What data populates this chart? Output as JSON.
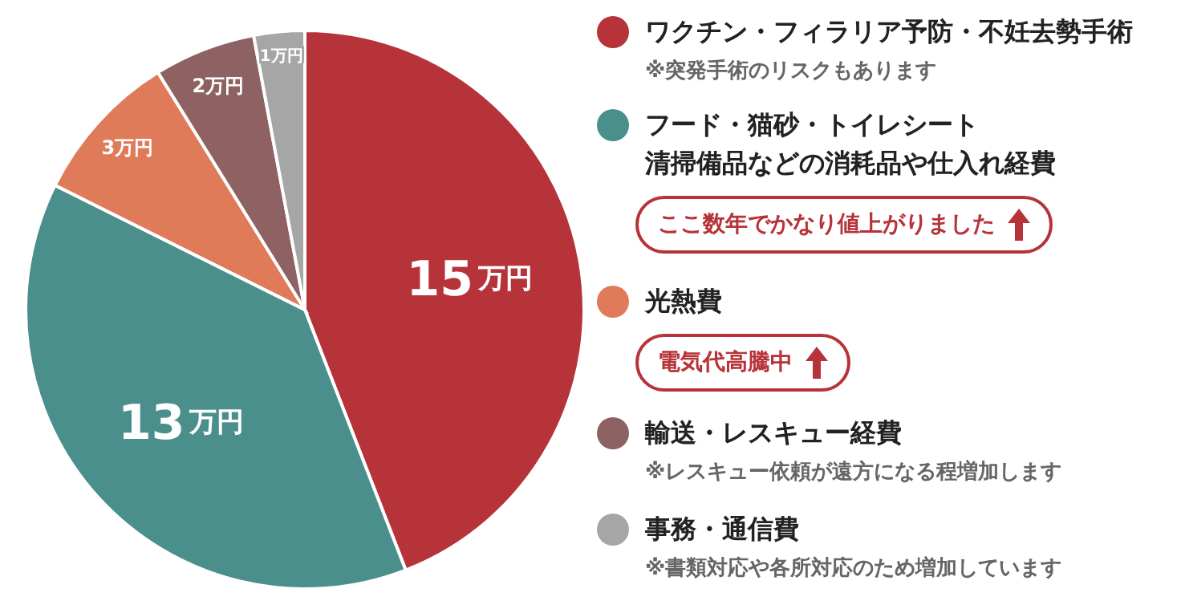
{
  "chart_data": {
    "type": "pie",
    "categories": [
      "ワクチン・フィラリア予防・不妊去勢手術",
      "フード・猫砂・トイレシート清掃備品などの消耗品や仕入れ経費",
      "光熱費",
      "輸送・レスキュー経費",
      "事務・通信費"
    ],
    "values": [
      15,
      13,
      3,
      2,
      1
    ],
    "colors": [
      "#b7333a",
      "#4a8f8c",
      "#e07b5a",
      "#8e6163",
      "#a6a6a6"
    ],
    "value_labels": [
      "15万円",
      "13万円",
      "3万円",
      "2万円",
      "1万円"
    ],
    "legend": "right",
    "annotations": [
      "※突発手術のリスクもあります",
      "ここ数年でかなり値上がりました",
      "電気代高騰中",
      "※レスキュー依頼が遠方になる程増加します",
      "※書類対応や各所対応のため増加しています"
    ]
  }
}
